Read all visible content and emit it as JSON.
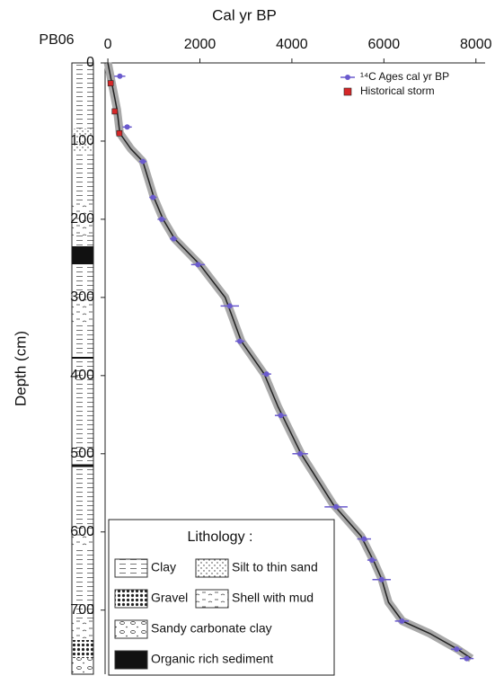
{
  "chart_data": {
    "type": "scatter",
    "title": "Cal yr BP",
    "core_label": "PB06",
    "y_label": "Depth (cm)",
    "x_axis_position": "top",
    "y_inverted": true,
    "xlim": [
      -60,
      8200
    ],
    "ylim": [
      0,
      782
    ],
    "xticks": [
      0,
      2000,
      4000,
      6000,
      8000
    ],
    "yticks": [
      0,
      100,
      200,
      300,
      400,
      500,
      600,
      700
    ],
    "legend": "top-right",
    "age_model": {
      "color": "#222222",
      "band_color": "#a9a9a9",
      "x": [
        0,
        100,
        200,
        260,
        500,
        760,
        1000,
        1200,
        1450,
        2000,
        2550,
        2800,
        2900,
        3400,
        3700,
        4200,
        4900,
        5500,
        5800,
        5950,
        6100,
        6400,
        7000,
        7600,
        7900
      ],
      "values": [
        0,
        30,
        60,
        90,
        110,
        126,
        172,
        200,
        225,
        258,
        300,
        340,
        356,
        398,
        440,
        500,
        565,
        605,
        640,
        660,
        690,
        714,
        730,
        750,
        762
      ]
    },
    "series": [
      {
        "name": "¹⁴C Ages cal yr BP",
        "color": "#6a5acd",
        "x": [
          260,
          420,
          760,
          980,
          1170,
          1430,
          1960,
          2650,
          2870,
          3450,
          3760,
          4180,
          4960,
          5570,
          5740,
          5950,
          6390,
          7580,
          7800
        ],
        "values": [
          17,
          82,
          126,
          172,
          200,
          225,
          258,
          311,
          356,
          398,
          451,
          500,
          568,
          609,
          636,
          661,
          714,
          750,
          762
        ],
        "xerr": [
          120,
          100,
          80,
          80,
          90,
          80,
          150,
          200,
          100,
          100,
          130,
          170,
          250,
          150,
          100,
          200,
          150,
          120,
          150
        ]
      },
      {
        "name": "Historical storm",
        "color": "#d62728",
        "x": [
          60,
          150,
          250
        ],
        "values": [
          26,
          62,
          90
        ]
      }
    ],
    "lithology": {
      "title": "Lithology :",
      "items": [
        "Clay",
        "Silt to thin sand",
        "Gravel",
        "Shell with mud",
        "Sandy carbonate clay",
        "Organic rich sediment"
      ]
    }
  }
}
